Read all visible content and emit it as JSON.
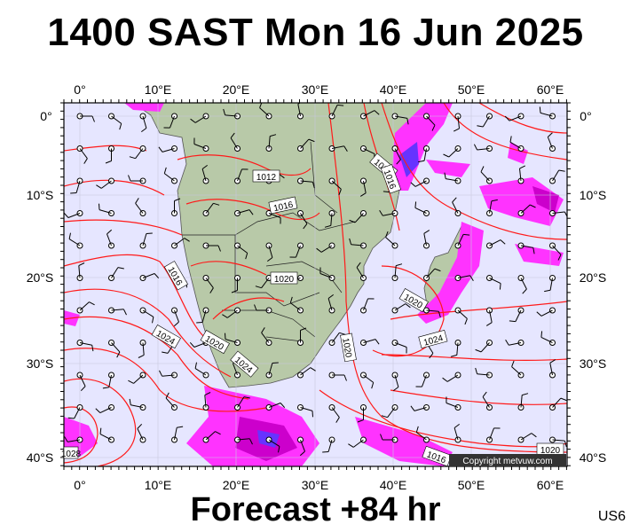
{
  "header": {
    "title": "1400 SAST Mon 16 Jun 2025"
  },
  "footer": {
    "forecast": "Forecast +84 hr",
    "code": "US6",
    "copyright": "Copyright metvuw.com"
  },
  "axes": {
    "lon_labels": [
      "0°",
      "10°E",
      "20°E",
      "30°E",
      "40°E",
      "50°E",
      "60°E"
    ],
    "lat_labels": [
      "0°",
      "10°S",
      "20°S",
      "30°S",
      "40°S"
    ]
  },
  "isobar_labels": [
    "1012",
    "1016",
    "1016",
    "1016",
    "1016",
    "1020",
    "1020",
    "1020",
    "1020",
    "1024",
    "1024",
    "1024",
    "1016",
    "1020",
    "1028"
  ],
  "colors": {
    "ocean": "#e6e6ff",
    "land": "#b8c9a8",
    "isobar": "#ff1a1a",
    "precip_light": "#ff33ff",
    "precip_mid": "#cc00cc",
    "precip_heavy": "#6633ff"
  }
}
